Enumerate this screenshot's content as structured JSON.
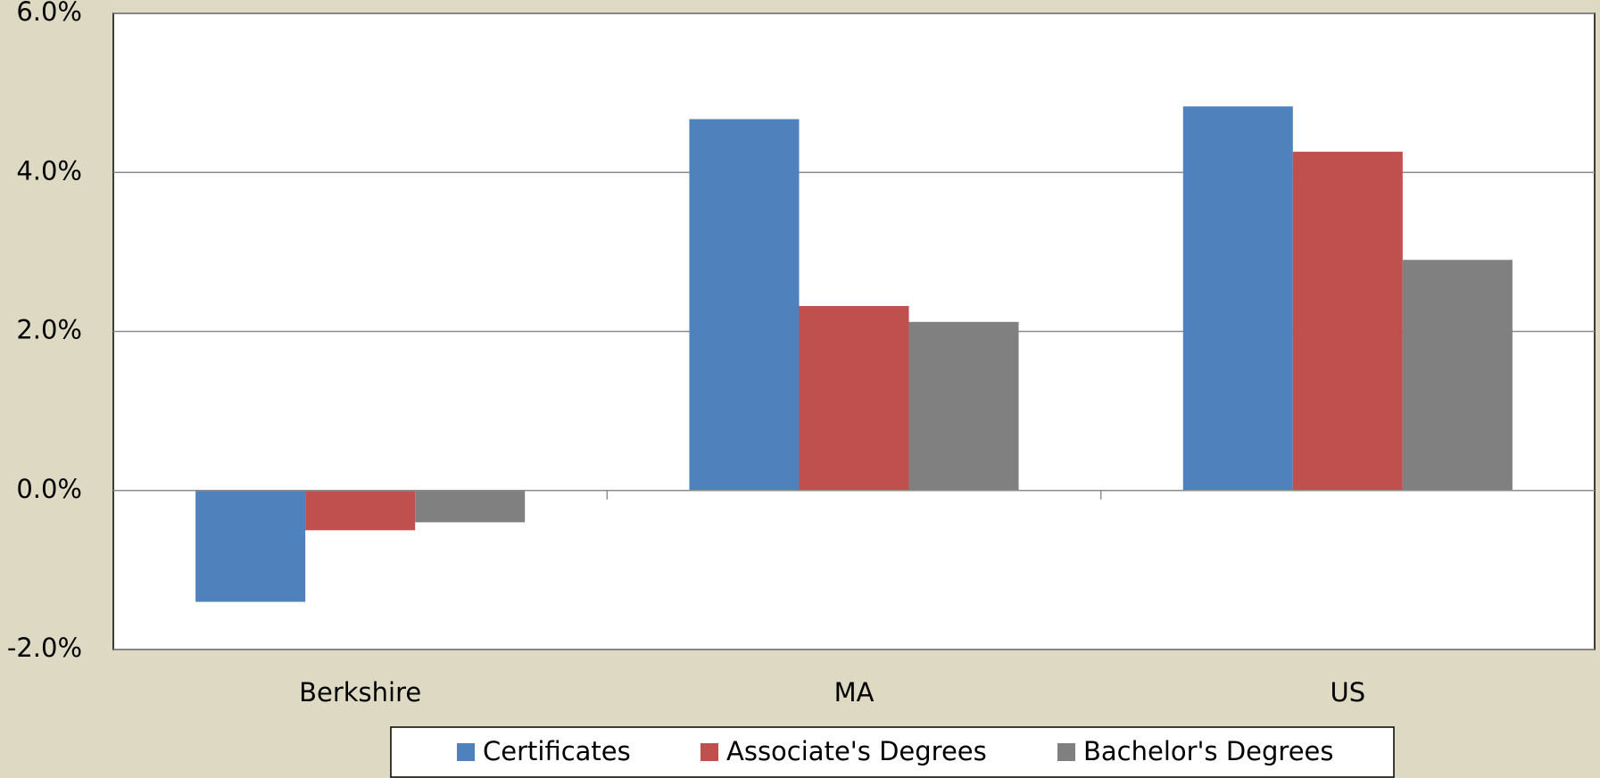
{
  "chart_data": {
    "type": "bar",
    "categories": [
      "Berkshire",
      "MA",
      "US"
    ],
    "series": [
      {
        "name": "Certificates",
        "color": "#4f81bd",
        "values": [
          -1.4,
          4.67,
          4.83
        ]
      },
      {
        "name": "Associate's Degrees",
        "color": "#c0504d",
        "values": [
          -0.5,
          2.32,
          4.26
        ]
      },
      {
        "name": "Bachelor's Degrees",
        "color": "#808080",
        "values": [
          -0.4,
          2.12,
          2.9
        ]
      }
    ],
    "ylim": [
      -2,
      6
    ],
    "yticks": [
      {
        "value": -2,
        "label": "-2.0%"
      },
      {
        "value": 0,
        "label": "0.0%"
      },
      {
        "value": 2,
        "label": "2.0%"
      },
      {
        "value": 4,
        "label": "4.0%"
      },
      {
        "value": 6,
        "label": "6.0%"
      }
    ],
    "grid": true,
    "legend": "bottom"
  }
}
